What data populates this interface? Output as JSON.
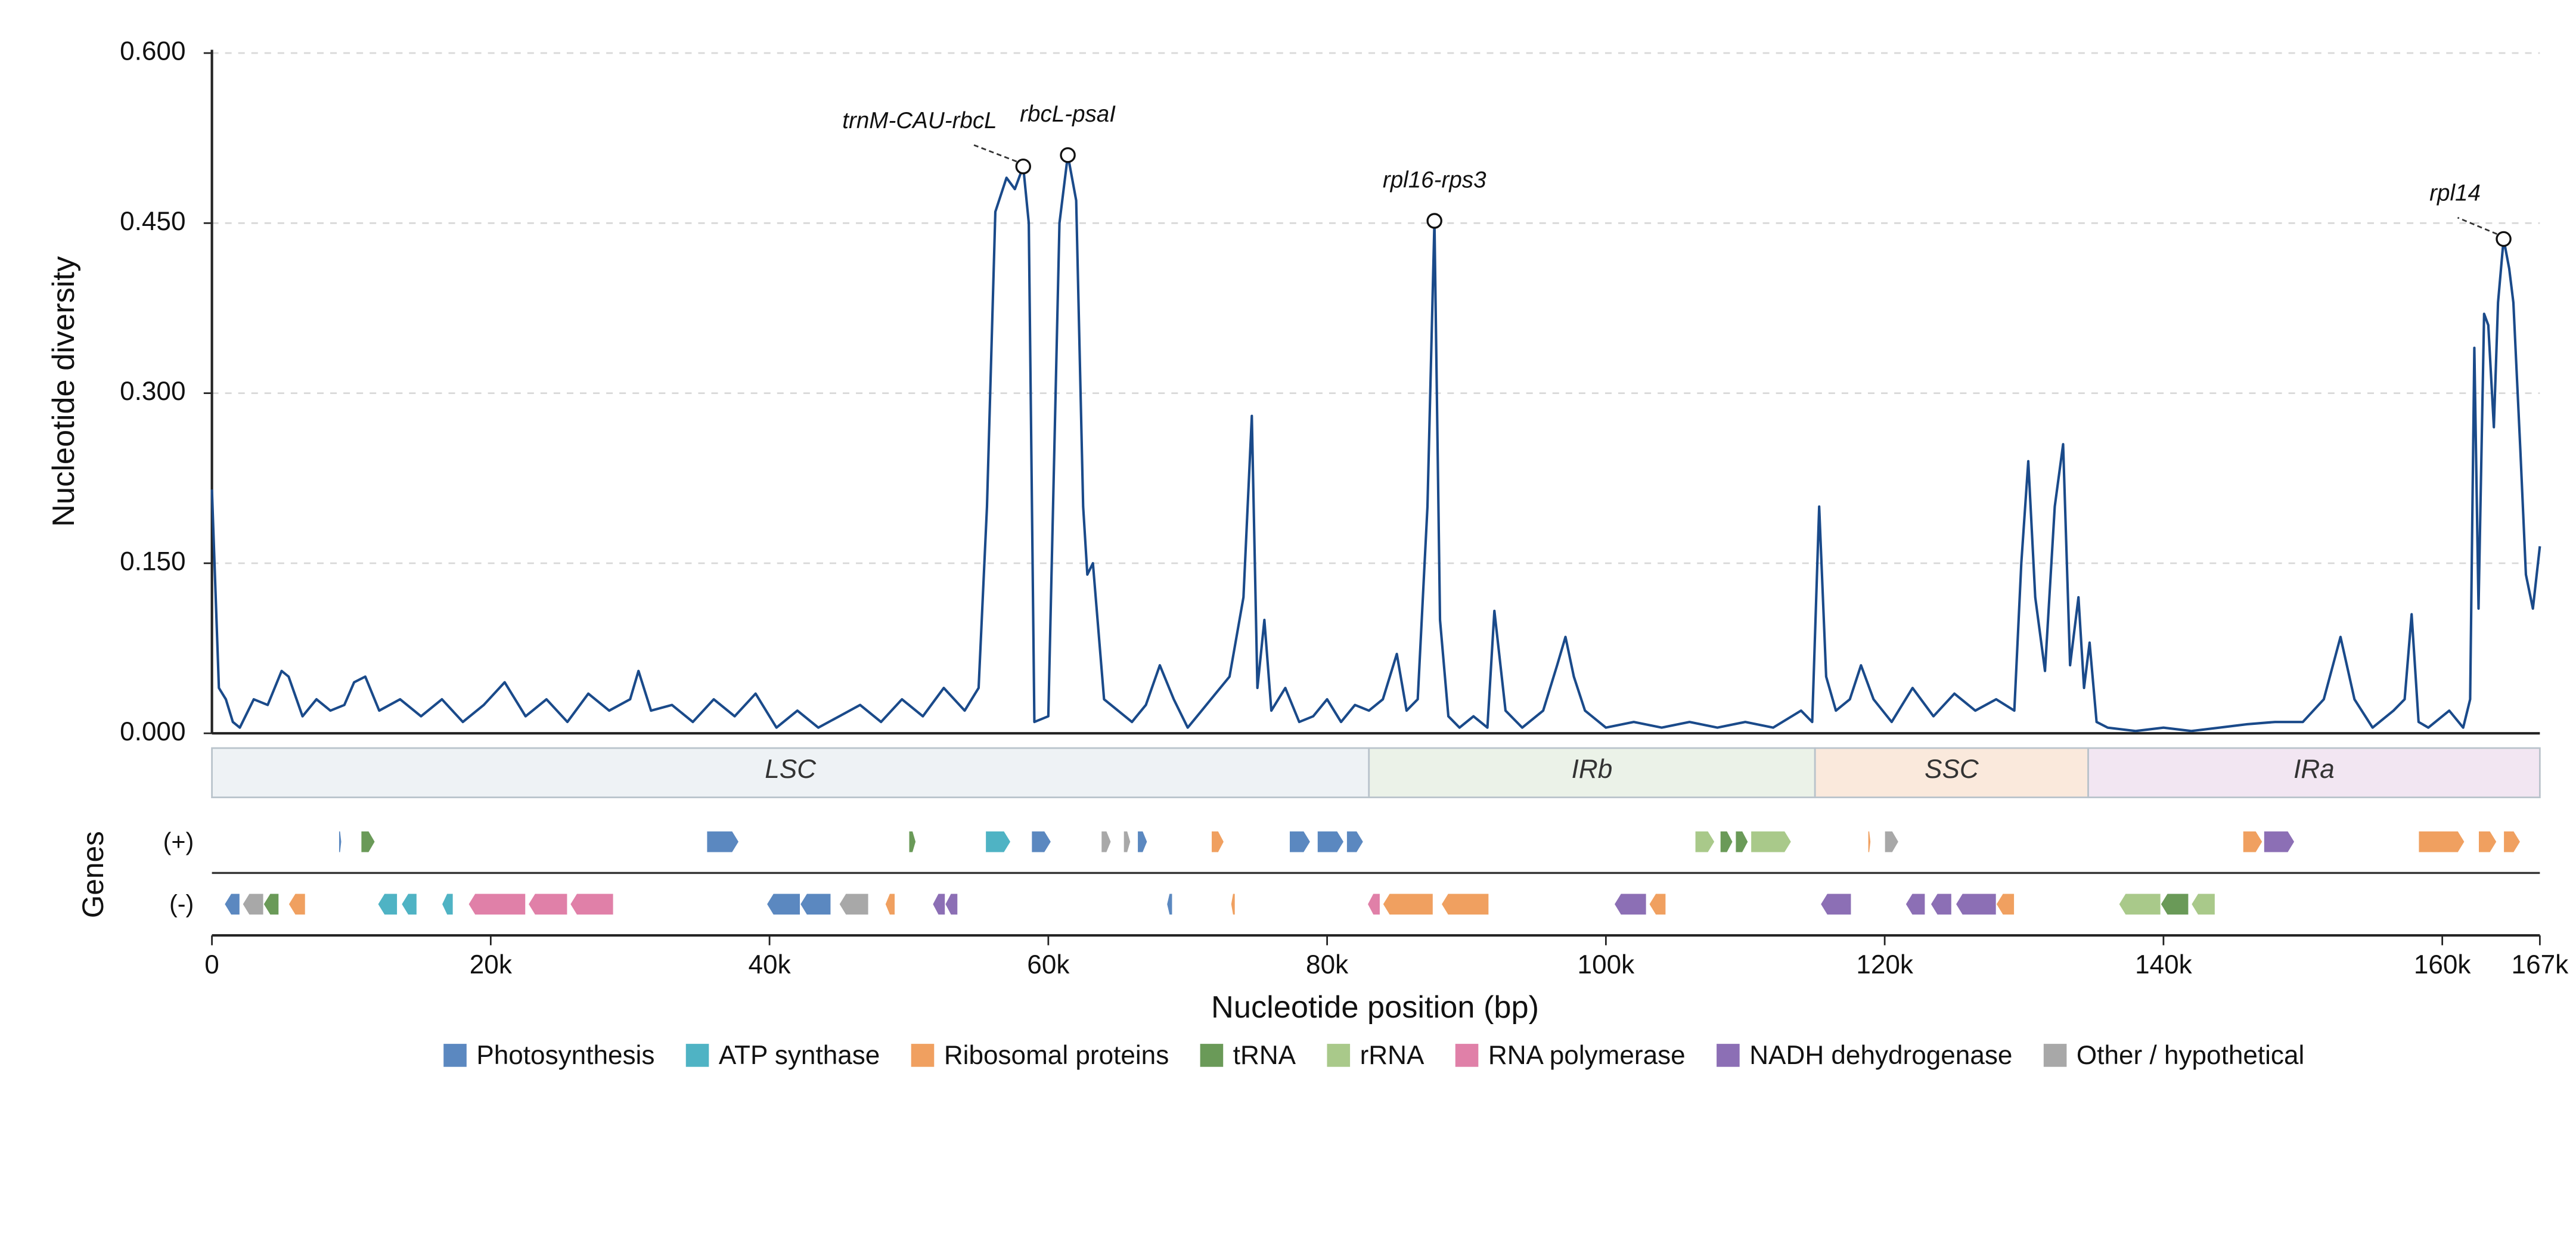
{
  "chart_data": {
    "type": "line",
    "y_label": "Nucleotide diversity",
    "x_label": "Nucleotide position (bp)",
    "genes_label": "Genes",
    "strand_labels": [
      "(+)",
      "(-)"
    ],
    "color": "#1a4a8a",
    "grid": true,
    "ylim": [
      0,
      0.6
    ],
    "yticks": [
      {
        "value": 0,
        "label": "0.000"
      },
      {
        "value": 0.15,
        "label": "0.150"
      },
      {
        "value": 0.3,
        "label": "0.300"
      },
      {
        "value": 0.45,
        "label": "0.450"
      },
      {
        "value": 0.6,
        "label": "0.600"
      }
    ],
    "xlim": [
      0,
      167000
    ],
    "xticks": [
      0,
      {
        "value": 20000,
        "label": "20k"
      },
      {
        "value": 40000,
        "label": "40k"
      },
      {
        "value": 60000,
        "label": "60k"
      },
      {
        "value": 80000,
        "label": "80k"
      },
      {
        "value": 100000,
        "label": "100k"
      },
      {
        "value": 120000,
        "label": "120k"
      },
      {
        "value": 140000,
        "label": "140k"
      },
      {
        "value": 160000,
        "label": "160k"
      },
      {
        "value": 167000,
        "label": "167k"
      }
    ],
    "x": [
      0,
      500,
      1000,
      1500,
      2000,
      3000,
      4000,
      5000,
      5500,
      6500,
      7500,
      8500,
      9500,
      10200,
      11000,
      12000,
      13500,
      15000,
      16500,
      18000,
      19500,
      21000,
      22500,
      24000,
      25500,
      27000,
      28500,
      30000,
      30600,
      31500,
      33000,
      34500,
      36000,
      37500,
      39000,
      40500,
      42000,
      43500,
      45000,
      46500,
      48000,
      49500,
      51000,
      52500,
      54000,
      55000,
      55600,
      56200,
      57000,
      57600,
      58200,
      58600,
      59000,
      60000,
      60800,
      61400,
      62000,
      62500,
      62800,
      63200,
      64000,
      65000,
      66000,
      67000,
      68000,
      69000,
      70000,
      71000,
      72000,
      73000,
      74000,
      74600,
      75000,
      75500,
      76000,
      77000,
      78000,
      79000,
      80000,
      81000,
      82000,
      83000,
      84000,
      85000,
      85700,
      86500,
      87200,
      87700,
      88100,
      88700,
      89500,
      90500,
      91500,
      92000,
      92800,
      94000,
      95500,
      96500,
      97100,
      97700,
      98500,
      100000,
      102000,
      104000,
      106000,
      108000,
      110000,
      112000,
      114000,
      114800,
      115300,
      115800,
      116500,
      117500,
      118300,
      119200,
      120500,
      122000,
      123500,
      125000,
      126500,
      128000,
      129300,
      129800,
      130300,
      130800,
      131500,
      132200,
      132800,
      133300,
      133900,
      134300,
      134700,
      135200,
      136000,
      138000,
      140000,
      142000,
      144000,
      146000,
      148000,
      150000,
      151500,
      152700,
      153700,
      155000,
      156500,
      157300,
      157800,
      158300,
      159000,
      160500,
      161500,
      162000,
      162300,
      162600,
      163000,
      163300,
      163700,
      164000,
      164400,
      164800,
      165100,
      165600,
      166000,
      166500,
      167000
    ],
    "values": [
      0.215,
      0.04,
      0.03,
      0.01,
      0.005,
      0.03,
      0.025,
      0.055,
      0.05,
      0.015,
      0.03,
      0.02,
      0.025,
      0.045,
      0.05,
      0.02,
      0.03,
      0.015,
      0.03,
      0.01,
      0.025,
      0.045,
      0.015,
      0.03,
      0.01,
      0.035,
      0.02,
      0.03,
      0.055,
      0.02,
      0.025,
      0.01,
      0.03,
      0.015,
      0.035,
      0.005,
      0.02,
      0.005,
      0.015,
      0.025,
      0.01,
      0.03,
      0.015,
      0.04,
      0.02,
      0.04,
      0.2,
      0.46,
      0.49,
      0.48,
      0.5,
      0.45,
      0.01,
      0.015,
      0.45,
      0.51,
      0.47,
      0.2,
      0.14,
      0.15,
      0.03,
      0.02,
      0.01,
      0.025,
      0.06,
      0.03,
      0.005,
      0.02,
      0.035,
      0.05,
      0.12,
      0.28,
      0.04,
      0.1,
      0.02,
      0.04,
      0.01,
      0.015,
      0.03,
      0.01,
      0.025,
      0.02,
      0.03,
      0.07,
      0.02,
      0.03,
      0.2,
      0.452,
      0.1,
      0.015,
      0.005,
      0.015,
      0.005,
      0.108,
      0.02,
      0.005,
      0.02,
      0.06,
      0.085,
      0.05,
      0.02,
      0.005,
      0.01,
      0.005,
      0.01,
      0.005,
      0.01,
      0.005,
      0.02,
      0.01,
      0.2,
      0.05,
      0.02,
      0.03,
      0.06,
      0.03,
      0.01,
      0.04,
      0.015,
      0.035,
      0.02,
      0.03,
      0.02,
      0.15,
      0.24,
      0.12,
      0.055,
      0.2,
      0.255,
      0.06,
      0.12,
      0.04,
      0.08,
      0.01,
      0.005,
      0.002,
      0.005,
      0.002,
      0.005,
      0.008,
      0.01,
      0.01,
      0.03,
      0.085,
      0.03,
      0.005,
      0.02,
      0.03,
      0.105,
      0.01,
      0.005,
      0.02,
      0.005,
      0.03,
      0.34,
      0.11,
      0.37,
      0.36,
      0.27,
      0.38,
      0.436,
      0.41,
      0.38,
      0.25,
      0.14,
      0.11,
      0.165
    ],
    "annotations": [
      {
        "text": "trnM-CAU-rbcL",
        "x": 58200,
        "y": 0.5
      },
      {
        "text": "rbcL-psaI",
        "x": 61400,
        "y": 0.51
      },
      {
        "text": "rpl16-rps3",
        "x": 87700,
        "y": 0.452
      },
      {
        "text": "rpl14",
        "x": 164400,
        "y": 0.436
      }
    ],
    "regions": [
      {
        "name": "LSC",
        "start": 0,
        "end": 83000,
        "color": "#eef2f5"
      },
      {
        "name": "IRb",
        "start": 83000,
        "end": 115000,
        "color": "#ebf2e8"
      },
      {
        "name": "SSC",
        "start": 115000,
        "end": 134600,
        "color": "#fae9dc"
      },
      {
        "name": "IRa",
        "start": 134600,
        "end": 167000,
        "color": "#f2e6f2"
      }
    ],
    "gene_categories": [
      {
        "name": "Photosynthesis",
        "color": "#5b88c0"
      },
      {
        "name": "ATP synthase",
        "color": "#4fb3c4"
      },
      {
        "name": "Ribosomal proteins",
        "color": "#f0a060"
      },
      {
        "name": "tRNA",
        "color": "#6a9a58"
      },
      {
        "name": "rRNA",
        "color": "#a9c98a"
      },
      {
        "name": "RNA polymerase",
        "color": "#e080a8"
      },
      {
        "name": "NADH dehydrogenase",
        "color": "#8c6fb5"
      },
      {
        "name": "Other / hypothetical",
        "color": "#a8a8a8"
      }
    ],
    "genes": [
      {
        "start": 9100,
        "end": 9300,
        "strand": 1,
        "category": 0
      },
      {
        "start": 10700,
        "end": 11700,
        "strand": 1,
        "category": 3
      },
      {
        "start": 35500,
        "end": 37800,
        "strand": 1,
        "category": 0
      },
      {
        "start": 50000,
        "end": 50500,
        "strand": 1,
        "category": 3
      },
      {
        "start": 55500,
        "end": 57300,
        "strand": 1,
        "category": 1
      },
      {
        "start": 58800,
        "end": 60200,
        "strand": 1,
        "category": 0
      },
      {
        "start": 63800,
        "end": 64500,
        "strand": 1,
        "category": 7
      },
      {
        "start": 65400,
        "end": 65900,
        "strand": 1,
        "category": 7
      },
      {
        "start": 66400,
        "end": 67100,
        "strand": 1,
        "category": 0
      },
      {
        "start": 71700,
        "end": 72600,
        "strand": 1,
        "category": 2
      },
      {
        "start": 77300,
        "end": 78800,
        "strand": 1,
        "category": 0
      },
      {
        "start": 79300,
        "end": 81200,
        "strand": 1,
        "category": 0
      },
      {
        "start": 81400,
        "end": 82600,
        "strand": 1,
        "category": 0
      },
      {
        "start": 106400,
        "end": 107800,
        "strand": 1,
        "category": 4
      },
      {
        "start": 108200,
        "end": 109100,
        "strand": 1,
        "category": 3
      },
      {
        "start": 109300,
        "end": 110200,
        "strand": 1,
        "category": 3
      },
      {
        "start": 110400,
        "end": 113300,
        "strand": 1,
        "category": 4
      },
      {
        "start": 118800,
        "end": 119000,
        "strand": 1,
        "category": 2
      },
      {
        "start": 120000,
        "end": 121000,
        "strand": 1,
        "category": 7
      },
      {
        "start": 145700,
        "end": 147100,
        "strand": 1,
        "category": 2
      },
      {
        "start": 147200,
        "end": 149400,
        "strand": 1,
        "category": 6
      },
      {
        "start": 158300,
        "end": 161600,
        "strand": 1,
        "category": 2
      },
      {
        "start": 162600,
        "end": 163900,
        "strand": 1,
        "category": 2
      },
      {
        "start": 164400,
        "end": 165600,
        "strand": 1,
        "category": 2
      },
      {
        "start": 900,
        "end": 2000,
        "strand": -1,
        "category": 0
      },
      {
        "start": 2200,
        "end": 3700,
        "strand": -1,
        "category": 7
      },
      {
        "start": 3700,
        "end": 4800,
        "strand": -1,
        "category": 3
      },
      {
        "start": 5500,
        "end": 6700,
        "strand": -1,
        "category": 2
      },
      {
        "start": 11900,
        "end": 13300,
        "strand": -1,
        "category": 1
      },
      {
        "start": 13600,
        "end": 14700,
        "strand": -1,
        "category": 1
      },
      {
        "start": 16500,
        "end": 17300,
        "strand": -1,
        "category": 1
      },
      {
        "start": 18400,
        "end": 22500,
        "strand": -1,
        "category": 5
      },
      {
        "start": 22700,
        "end": 25500,
        "strand": -1,
        "category": 5
      },
      {
        "start": 25700,
        "end": 28800,
        "strand": -1,
        "category": 5
      },
      {
        "start": 39800,
        "end": 42200,
        "strand": -1,
        "category": 0
      },
      {
        "start": 42200,
        "end": 44400,
        "strand": -1,
        "category": 0
      },
      {
        "start": 45000,
        "end": 47100,
        "strand": -1,
        "category": 7
      },
      {
        "start": 48300,
        "end": 49000,
        "strand": -1,
        "category": 2
      },
      {
        "start": 51700,
        "end": 52600,
        "strand": -1,
        "category": 6
      },
      {
        "start": 52600,
        "end": 53500,
        "strand": -1,
        "category": 6
      },
      {
        "start": 68500,
        "end": 68900,
        "strand": -1,
        "category": 0
      },
      {
        "start": 73100,
        "end": 73400,
        "strand": -1,
        "category": 2
      },
      {
        "start": 82900,
        "end": 83800,
        "strand": -1,
        "category": 5
      },
      {
        "start": 84000,
        "end": 87600,
        "strand": -1,
        "category": 2
      },
      {
        "start": 88200,
        "end": 91600,
        "strand": -1,
        "category": 2
      },
      {
        "start": 100600,
        "end": 102900,
        "strand": -1,
        "category": 6
      },
      {
        "start": 103100,
        "end": 104300,
        "strand": -1,
        "category": 2
      },
      {
        "start": 115400,
        "end": 117600,
        "strand": -1,
        "category": 6
      },
      {
        "start": 121500,
        "end": 122900,
        "strand": -1,
        "category": 6
      },
      {
        "start": 123300,
        "end": 124800,
        "strand": -1,
        "category": 6
      },
      {
        "start": 125100,
        "end": 128000,
        "strand": -1,
        "category": 6
      },
      {
        "start": 128000,
        "end": 129300,
        "strand": -1,
        "category": 2
      },
      {
        "start": 136800,
        "end": 139800,
        "strand": -1,
        "category": 4
      },
      {
        "start": 139800,
        "end": 141800,
        "strand": -1,
        "category": 3
      },
      {
        "start": 142000,
        "end": 143700,
        "strand": -1,
        "category": 4
      }
    ]
  }
}
